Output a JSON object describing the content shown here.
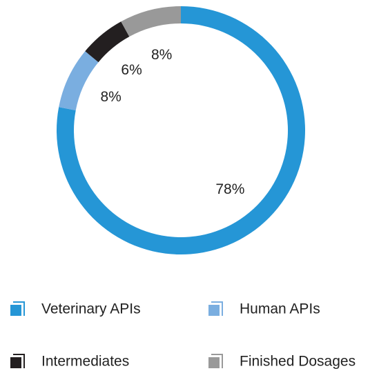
{
  "chart_data": {
    "type": "donut",
    "categories": [
      "Veterinary APIs",
      "Human APIs",
      "Intermediates",
      "Finished Dosages"
    ],
    "values": [
      78,
      8,
      6,
      8
    ],
    "value_labels": [
      "78%",
      "8%",
      "6%",
      "8%"
    ],
    "colors": [
      "#2596d6",
      "#7aaee0",
      "#231f20",
      "#999999"
    ]
  }
}
